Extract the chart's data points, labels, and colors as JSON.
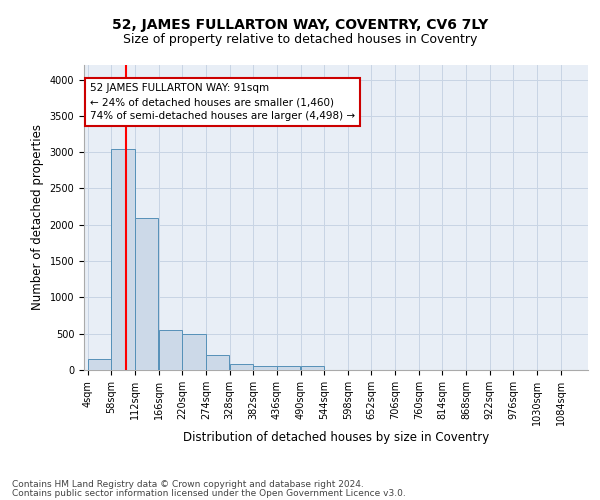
{
  "title_line1": "52, JAMES FULLARTON WAY, COVENTRY, CV6 7LY",
  "title_line2": "Size of property relative to detached houses in Coventry",
  "xlabel": "Distribution of detached houses by size in Coventry",
  "ylabel": "Number of detached properties",
  "bin_edges": [
    4,
    58,
    112,
    166,
    220,
    274,
    328,
    382,
    436,
    490,
    544,
    598,
    652,
    706,
    760,
    814,
    868,
    922,
    976,
    1030,
    1084
  ],
  "bar_heights": [
    150,
    3050,
    2100,
    550,
    500,
    200,
    80,
    60,
    50,
    50,
    0,
    0,
    0,
    0,
    0,
    0,
    0,
    0,
    0,
    0
  ],
  "bar_color": "#ccd9e8",
  "bar_edge_color": "#5590b8",
  "red_line_x": 91,
  "annotation_line1": "52 JAMES FULLARTON WAY: 91sqm",
  "annotation_line2": "← 24% of detached houses are smaller (1,460)",
  "annotation_line3": "74% of semi-detached houses are larger (4,498) →",
  "annotation_box_color": "#ffffff",
  "annotation_box_edge": "#cc0000",
  "ylim": [
    0,
    4200
  ],
  "yticks": [
    0,
    500,
    1000,
    1500,
    2000,
    2500,
    3000,
    3500,
    4000
  ],
  "grid_color": "#c8d4e4",
  "background_color": "#e8eef6",
  "footer_line1": "Contains HM Land Registry data © Crown copyright and database right 2024.",
  "footer_line2": "Contains public sector information licensed under the Open Government Licence v3.0.",
  "title_fontsize": 10,
  "subtitle_fontsize": 9,
  "axis_label_fontsize": 8.5,
  "tick_fontsize": 7,
  "annotation_fontsize": 7.5,
  "footer_fontsize": 6.5
}
